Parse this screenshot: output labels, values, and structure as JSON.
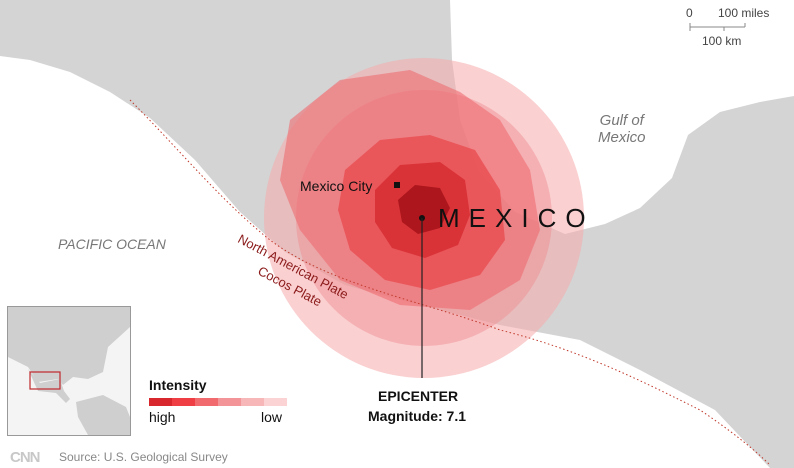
{
  "labels": {
    "country": "MEXICO",
    "city": "Mexico City",
    "gulf_line1": "Gulf of",
    "gulf_line2": "Mexico",
    "ocean": "PACIFIC OCEAN",
    "plate_north": "North American Plate",
    "plate_south": "Cocos Plate",
    "epicenter_title": "EPICENTER",
    "epicenter_magnitude": "Magnitude: 7.1"
  },
  "scale": {
    "zero": "0",
    "miles": "100 miles",
    "km": "100 km"
  },
  "legend": {
    "title": "Intensity",
    "high": "high",
    "low": "low",
    "colors": [
      "#d8282e",
      "#ef3f45",
      "#f06a6e",
      "#f39598",
      "#f7b6b8",
      "#fbd3d4"
    ]
  },
  "footer": {
    "logo": "CNN",
    "source": "Source: U.S. Geological Survey"
  },
  "colors": {
    "land": "#d4d4d4",
    "water": "#ffffff",
    "plate_boundary": "#c0392b",
    "inset_box": "#c0282d"
  }
}
